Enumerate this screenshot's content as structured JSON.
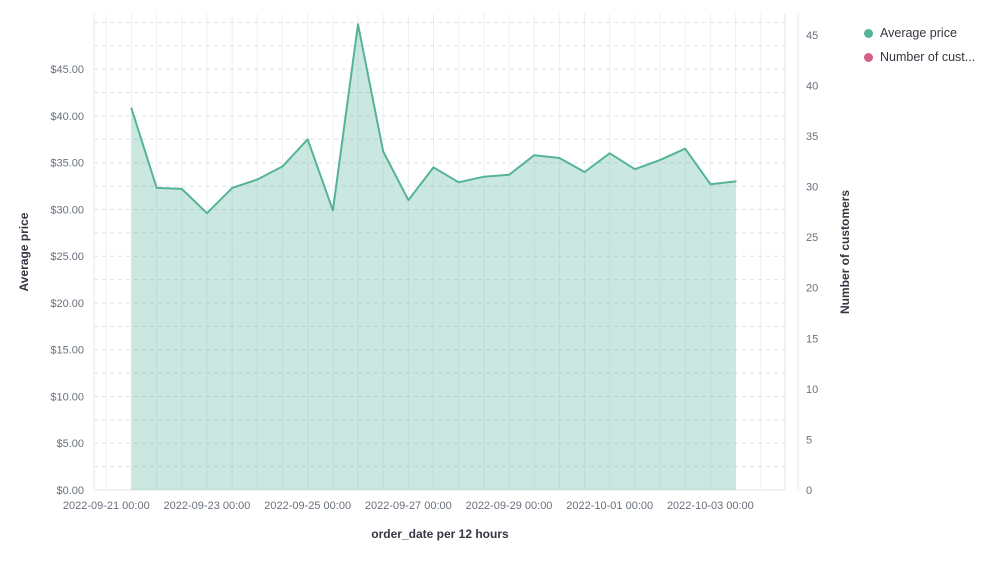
{
  "chart_data": {
    "type": "area",
    "title": "",
    "x_interval": "12 hours",
    "x": [
      "2022-09-21 12:00",
      "2022-09-22 00:00",
      "2022-09-22 12:00",
      "2022-09-23 00:00",
      "2022-09-23 12:00",
      "2022-09-24 00:00",
      "2022-09-24 12:00",
      "2022-09-25 00:00",
      "2022-09-25 12:00",
      "2022-09-26 00:00",
      "2022-09-26 12:00",
      "2022-09-27 00:00",
      "2022-09-27 12:00",
      "2022-09-28 00:00",
      "2022-09-28 12:00",
      "2022-09-29 00:00",
      "2022-09-29 12:00",
      "2022-09-30 00:00",
      "2022-09-30 12:00",
      "2022-10-01 00:00",
      "2022-10-01 12:00",
      "2022-10-02 00:00",
      "2022-10-02 12:00",
      "2022-10-03 00:00",
      "2022-10-03 12:00"
    ],
    "series": [
      {
        "name": "Average price",
        "axis": "left",
        "color": "#54B399",
        "fill_opacity": 0.3,
        "values": [
          40.8,
          32.3,
          32.2,
          29.6,
          32.3,
          33.2,
          34.6,
          37.5,
          29.9,
          49.8,
          36.2,
          31.0,
          34.5,
          32.9,
          33.5,
          33.7,
          35.8,
          35.5,
          34.0,
          36.0,
          34.3,
          35.3,
          36.5,
          32.7,
          33.0
        ]
      },
      {
        "name": "Number of customers",
        "axis": "right",
        "color": "#D36086",
        "values": []
      }
    ],
    "x_axis": {
      "title": "order_date per 12 hours",
      "tick_labels": [
        "2022-09-21 00:00",
        "2022-09-23 00:00",
        "2022-09-25 00:00",
        "2022-09-27 00:00",
        "2022-09-29 00:00",
        "2022-10-01 00:00",
        "2022-10-03 00:00"
      ]
    },
    "y_left": {
      "title": "Average price",
      "tick_labels": [
        "$0.00",
        "$5.00",
        "$10.00",
        "$15.00",
        "$20.00",
        "$25.00",
        "$30.00",
        "$35.00",
        "$40.00",
        "$45.00"
      ],
      "tick_values": [
        0,
        5,
        10,
        15,
        20,
        25,
        30,
        35,
        40,
        45
      ],
      "range": [
        0,
        50.9
      ],
      "grid_step": 2.5,
      "grid_style": "dashed"
    },
    "y_right": {
      "title": "Number of customers",
      "tick_labels": [
        "0",
        "5",
        "10",
        "15",
        "20",
        "25",
        "30",
        "35",
        "40",
        "45"
      ],
      "tick_values": [
        0,
        5,
        10,
        15,
        20,
        25,
        30,
        35,
        40,
        45
      ],
      "range": [
        0,
        47.1
      ]
    },
    "legend": {
      "position": "top-right",
      "items": [
        {
          "label": "Average price",
          "color": "#54B399"
        },
        {
          "label": "Number of cust...",
          "color": "#D36086"
        }
      ]
    },
    "grid": {
      "vertical": "solid",
      "horizontal": "dashed"
    },
    "colors": {
      "tick_label": "#69707D",
      "axis_title": "#343741",
      "grid_vertical": "#EDEFF3",
      "grid_horizontal": "#DDE1E8",
      "axis_line": "#E3E6EB",
      "background": "#FFFFFF"
    }
  }
}
